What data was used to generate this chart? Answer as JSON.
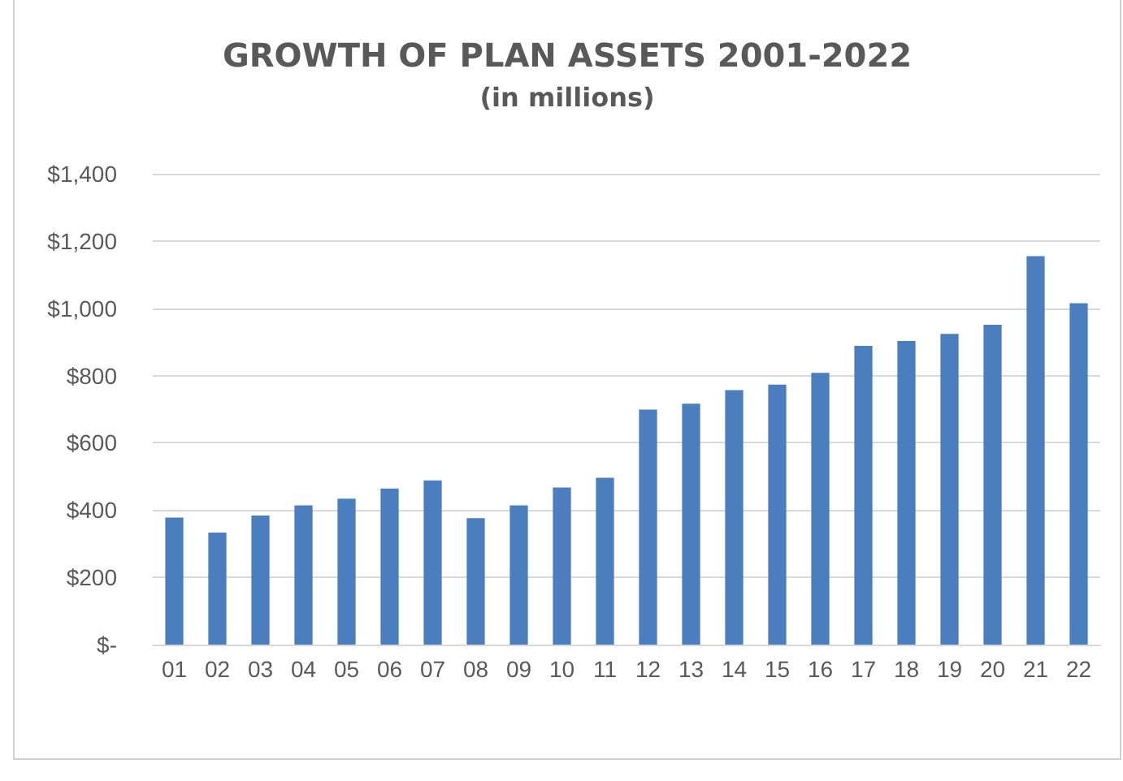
{
  "chart_data": {
    "type": "bar",
    "title": "GROWTH OF PLAN ASSETS 2001-2022",
    "subtitle": "(in millions)",
    "categories": [
      "01",
      "02",
      "03",
      "04",
      "05",
      "06",
      "07",
      "08",
      "09",
      "10",
      "11",
      "12",
      "13",
      "14",
      "15",
      "16",
      "17",
      "18",
      "19",
      "20",
      "21",
      "22"
    ],
    "values": [
      378,
      333,
      384,
      414,
      434,
      464,
      488,
      376,
      414,
      467,
      496,
      699,
      716,
      757,
      773,
      808,
      888,
      903,
      924,
      951,
      1155,
      1015
    ],
    "color": "#4a7ebf",
    "ylim": [
      0,
      1400
    ],
    "yticks": [
      {
        "value": 0,
        "label": "$-"
      },
      {
        "value": 200,
        "label": "$200"
      },
      {
        "value": 400,
        "label": "$400"
      },
      {
        "value": 600,
        "label": "$600"
      },
      {
        "value": 800,
        "label": "$800"
      },
      {
        "value": 1000,
        "label": "$1,000"
      },
      {
        "value": 1200,
        "label": "$1,200"
      },
      {
        "value": 1400,
        "label": "$1,400"
      }
    ],
    "grid": "y"
  }
}
